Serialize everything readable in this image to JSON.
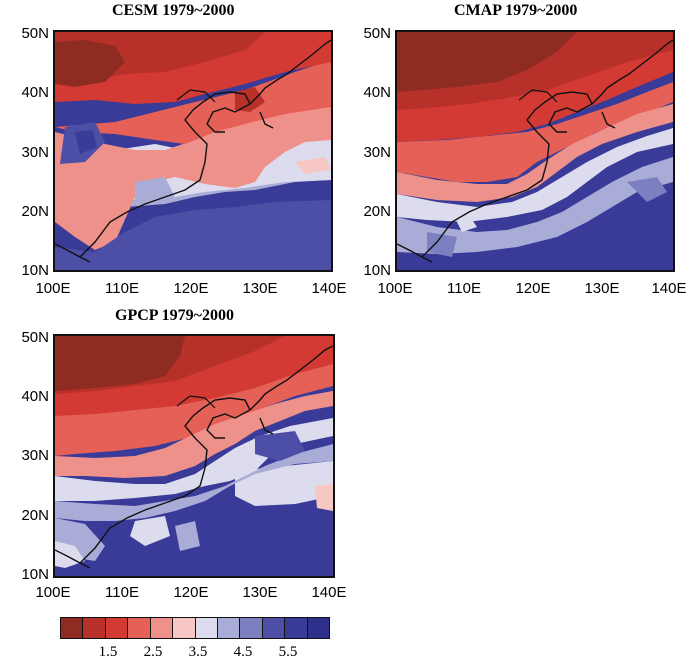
{
  "panels": [
    {
      "id": "cesm",
      "title": "CESM 1979~2000"
    },
    {
      "id": "cmap",
      "title": "CMAP 1979~2000"
    },
    {
      "id": "gpcp",
      "title": "GPCP 1979~2000"
    }
  ],
  "axes": {
    "lat_labels": [
      "50N",
      "40N",
      "30N",
      "20N",
      "10N"
    ],
    "lon_labels": [
      "100E",
      "110E",
      "120E",
      "130E",
      "140E"
    ]
  },
  "colorbar": {
    "labels": [
      "1.5",
      "2.5",
      "3.5",
      "4.5",
      "5.5"
    ],
    "colors": [
      "#8e2c22",
      "#b8302a",
      "#d23a33",
      "#e56057",
      "#ee918a",
      "#f6c7c3",
      "#dcdcee",
      "#a9acd6",
      "#7d80c0",
      "#4d4ea6",
      "#3a3b98",
      "#2f308c"
    ]
  }
}
